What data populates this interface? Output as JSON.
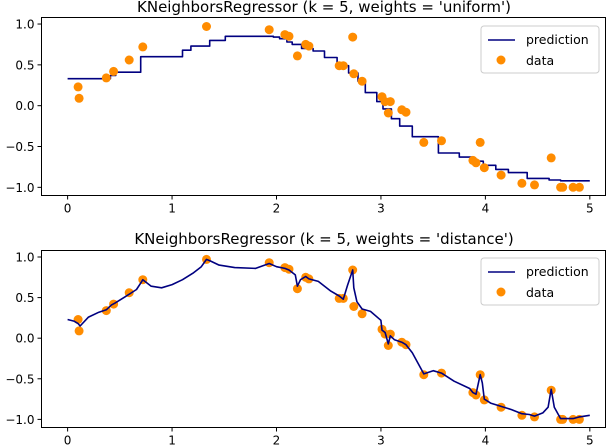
{
  "colors": {
    "prediction": "#000080",
    "data": "#ff8c00",
    "legend_border": "#cccccc"
  },
  "chart_data": [
    {
      "type": "line",
      "title": "KNeighborsRegressor (k = 5, weights = 'uniform')",
      "xlim": [
        -0.25,
        5.15
      ],
      "ylim": [
        -1.1,
        1.08
      ],
      "xticks": [
        0,
        1,
        2,
        3,
        4,
        5
      ],
      "yticks": [
        -1.0,
        -0.5,
        0.0,
        0.5,
        1.0
      ],
      "xtick_labels": [
        "0",
        "1",
        "2",
        "3",
        "4",
        "5"
      ],
      "ytick_labels": [
        "−1.0",
        "−0.5",
        "0.0",
        "0.5",
        "1.0"
      ],
      "legend_position": "upper right",
      "legend": {
        "prediction": "prediction",
        "data": "data"
      },
      "series": [
        {
          "name": "prediction",
          "kind": "line",
          "x": [
            0.0,
            0.41,
            0.41,
            0.46,
            0.46,
            0.7,
            0.7,
            1.1,
            1.1,
            1.18,
            1.18,
            1.36,
            1.36,
            1.51,
            1.51,
            1.97,
            1.97,
            2.03,
            2.03,
            2.1,
            2.1,
            2.15,
            2.15,
            2.24,
            2.24,
            2.35,
            2.35,
            2.46,
            2.46,
            2.58,
            2.58,
            2.69,
            2.69,
            2.78,
            2.78,
            2.85,
            2.85,
            2.96,
            2.96,
            3.02,
            3.02,
            3.1,
            3.1,
            3.18,
            3.18,
            3.3,
            3.3,
            3.55,
            3.55,
            3.75,
            3.75,
            3.88,
            3.88,
            3.98,
            3.98,
            4.1,
            4.1,
            4.22,
            4.22,
            4.4,
            4.4,
            4.61,
            4.61,
            4.72,
            4.72,
            5.0
          ],
          "y": [
            0.33,
            0.33,
            0.37,
            0.37,
            0.41,
            0.41,
            0.6,
            0.6,
            0.68,
            0.68,
            0.73,
            0.73,
            0.8,
            0.8,
            0.85,
            0.85,
            0.84,
            0.84,
            0.82,
            0.82,
            0.78,
            0.78,
            0.75,
            0.75,
            0.7,
            0.7,
            0.67,
            0.67,
            0.59,
            0.59,
            0.49,
            0.49,
            0.4,
            0.4,
            0.3,
            0.3,
            0.16,
            0.16,
            0.05,
            0.05,
            -0.04,
            -0.04,
            -0.16,
            -0.16,
            -0.25,
            -0.25,
            -0.38,
            -0.38,
            -0.58,
            -0.58,
            -0.63,
            -0.63,
            -0.68,
            -0.68,
            -0.73,
            -0.73,
            -0.78,
            -0.78,
            -0.82,
            -0.82,
            -0.89,
            -0.89,
            -0.91,
            -0.91,
            -0.92,
            -0.92
          ]
        },
        {
          "name": "data",
          "kind": "scatter",
          "x": [
            0.1,
            0.11,
            0.37,
            0.44,
            0.59,
            0.72,
            1.33,
            1.93,
            2.08,
            2.12,
            2.2,
            2.28,
            2.31,
            2.6,
            2.64,
            2.73,
            2.74,
            2.82,
            3.01,
            3.04,
            3.07,
            3.09,
            3.2,
            3.24,
            3.41,
            3.58,
            3.88,
            3.91,
            3.95,
            3.99,
            4.15,
            4.35,
            4.47,
            4.63,
            4.72,
            4.74,
            4.84,
            4.9
          ],
          "y": [
            0.23,
            0.09,
            0.34,
            0.42,
            0.56,
            0.72,
            0.97,
            0.93,
            0.87,
            0.85,
            0.61,
            0.75,
            0.73,
            0.49,
            0.49,
            0.84,
            0.39,
            0.3,
            0.11,
            0.05,
            -0.09,
            0.05,
            -0.05,
            -0.08,
            -0.45,
            -0.43,
            -0.67,
            -0.7,
            -0.45,
            -0.76,
            -0.85,
            -0.95,
            -0.97,
            -0.64,
            -1.0,
            -1.0,
            -1.0,
            -1.0
          ]
        }
      ]
    },
    {
      "type": "line",
      "title": "KNeighborsRegressor (k = 5, weights = 'distance')",
      "xlim": [
        -0.25,
        5.15
      ],
      "ylim": [
        -1.1,
        1.08
      ],
      "xticks": [
        0,
        1,
        2,
        3,
        4,
        5
      ],
      "yticks": [
        -1.0,
        -0.5,
        0.0,
        0.5,
        1.0
      ],
      "xtick_labels": [
        "0",
        "1",
        "2",
        "3",
        "4",
        "5"
      ],
      "ytick_labels": [
        "−1.0",
        "−0.5",
        "0.0",
        "0.5",
        "1.0"
      ],
      "legend_position": "upper right",
      "legend": {
        "prediction": "prediction",
        "data": "data"
      },
      "series": [
        {
          "name": "prediction",
          "kind": "line",
          "x": [
            0.0,
            0.06,
            0.1,
            0.12,
            0.2,
            0.3,
            0.37,
            0.42,
            0.45,
            0.55,
            0.6,
            0.66,
            0.71,
            0.72,
            0.74,
            0.8,
            0.9,
            1.0,
            1.1,
            1.2,
            1.28,
            1.33,
            1.37,
            1.45,
            1.6,
            1.8,
            1.93,
            2.0,
            2.08,
            2.12,
            2.18,
            2.2,
            2.23,
            2.28,
            2.31,
            2.4,
            2.52,
            2.6,
            2.64,
            2.68,
            2.73,
            2.74,
            2.77,
            2.82,
            2.9,
            3.0,
            3.01,
            3.04,
            3.07,
            3.09,
            3.13,
            3.2,
            3.24,
            3.3,
            3.41,
            3.5,
            3.58,
            3.7,
            3.85,
            3.88,
            3.91,
            3.95,
            3.97,
            3.99,
            4.05,
            4.15,
            4.25,
            4.35,
            4.42,
            4.47,
            4.55,
            4.6,
            4.63,
            4.66,
            4.72,
            4.74,
            4.8,
            4.84,
            4.9,
            5.0
          ],
          "y": [
            0.23,
            0.21,
            0.18,
            0.15,
            0.26,
            0.32,
            0.35,
            0.41,
            0.43,
            0.51,
            0.55,
            0.6,
            0.7,
            0.72,
            0.7,
            0.64,
            0.62,
            0.66,
            0.72,
            0.8,
            0.88,
            0.97,
            0.95,
            0.9,
            0.87,
            0.86,
            0.92,
            0.88,
            0.86,
            0.84,
            0.78,
            0.64,
            0.72,
            0.76,
            0.73,
            0.7,
            0.58,
            0.52,
            0.48,
            0.65,
            0.84,
            0.62,
            0.45,
            0.36,
            0.33,
            0.22,
            0.1,
            0.07,
            -0.07,
            0.03,
            -0.02,
            -0.05,
            -0.08,
            -0.18,
            -0.44,
            -0.4,
            -0.43,
            -0.53,
            -0.62,
            -0.67,
            -0.69,
            -0.45,
            -0.55,
            -0.75,
            -0.8,
            -0.84,
            -0.88,
            -0.93,
            -0.94,
            -0.96,
            -0.92,
            -0.85,
            -0.63,
            -0.85,
            -0.99,
            -0.99,
            -0.99,
            -0.99,
            -0.97,
            -0.95
          ]
        },
        {
          "name": "data",
          "kind": "scatter",
          "x": [
            0.1,
            0.11,
            0.37,
            0.44,
            0.59,
            0.72,
            1.33,
            1.93,
            2.08,
            2.12,
            2.2,
            2.28,
            2.31,
            2.6,
            2.64,
            2.73,
            2.74,
            2.82,
            3.01,
            3.04,
            3.07,
            3.09,
            3.2,
            3.24,
            3.41,
            3.58,
            3.88,
            3.91,
            3.95,
            3.99,
            4.15,
            4.35,
            4.47,
            4.63,
            4.72,
            4.74,
            4.84,
            4.9
          ],
          "y": [
            0.23,
            0.09,
            0.34,
            0.42,
            0.56,
            0.72,
            0.97,
            0.93,
            0.87,
            0.85,
            0.61,
            0.75,
            0.73,
            0.49,
            0.49,
            0.84,
            0.39,
            0.3,
            0.11,
            0.05,
            -0.09,
            0.05,
            -0.05,
            -0.08,
            -0.45,
            -0.43,
            -0.67,
            -0.7,
            -0.45,
            -0.76,
            -0.85,
            -0.95,
            -0.97,
            -0.64,
            -1.0,
            -1.0,
            -1.0,
            -1.0
          ]
        }
      ]
    }
  ]
}
